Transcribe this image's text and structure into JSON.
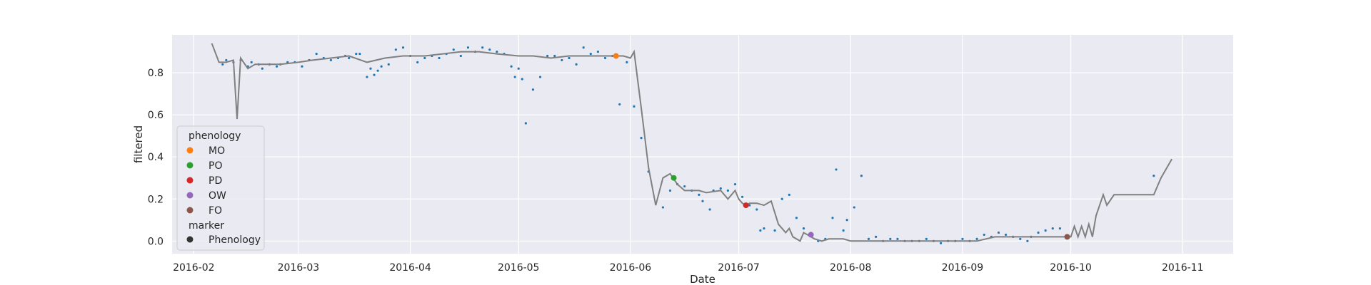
{
  "chart_data": {
    "type": "scatter",
    "title": "",
    "xlabel": "Date",
    "ylabel": "filtered",
    "x_range": [
      "2016-01-26",
      "2016-11-15"
    ],
    "ylim": [
      -0.06,
      0.98
    ],
    "x_ticks": [
      "2016-02",
      "2016-03",
      "2016-04",
      "2016-05",
      "2016-06",
      "2016-07",
      "2016-08",
      "2016-09",
      "2016-10",
      "2016-11"
    ],
    "y_ticks": [
      0.0,
      0.2,
      0.4,
      0.6,
      0.8
    ],
    "y_tick_labels": [
      "0.0",
      "0.2",
      "0.4",
      "0.6",
      "0.8"
    ],
    "grid": true,
    "legend_position": "center-left",
    "colors": {
      "plot_background": "#eaeaf2",
      "grid": "#ffffff",
      "line": "#808080",
      "points": "#1f77b4"
    },
    "observations": {
      "x": [
        "2016-02-09",
        "2016-02-10",
        "2016-02-12",
        "2016-02-14",
        "2016-02-16",
        "2016-02-17",
        "2016-02-19",
        "2016-02-20",
        "2016-02-22",
        "2016-02-24",
        "2016-02-25",
        "2016-02-27",
        "2016-02-29",
        "2016-03-02",
        "2016-03-04",
        "2016-03-06",
        "2016-03-08",
        "2016-03-10",
        "2016-03-12",
        "2016-03-14",
        "2016-03-15",
        "2016-03-17",
        "2016-03-18",
        "2016-03-20",
        "2016-03-21",
        "2016-03-22",
        "2016-03-23",
        "2016-03-24",
        "2016-03-26",
        "2016-03-28",
        "2016-03-30",
        "2016-04-01",
        "2016-04-03",
        "2016-04-05",
        "2016-04-07",
        "2016-04-09",
        "2016-04-11",
        "2016-04-13",
        "2016-04-15",
        "2016-04-17",
        "2016-04-19",
        "2016-04-21",
        "2016-04-23",
        "2016-04-25",
        "2016-04-27",
        "2016-04-29",
        "2016-04-30",
        "2016-05-01",
        "2016-05-02",
        "2016-05-03",
        "2016-05-05",
        "2016-05-07",
        "2016-05-09",
        "2016-05-11",
        "2016-05-13",
        "2016-05-15",
        "2016-05-17",
        "2016-05-19",
        "2016-05-21",
        "2016-05-23",
        "2016-05-25",
        "2016-05-27",
        "2016-05-29",
        "2016-05-31",
        "2016-06-02",
        "2016-06-04",
        "2016-06-06",
        "2016-06-10",
        "2016-06-12",
        "2016-06-14",
        "2016-06-16",
        "2016-06-18",
        "2016-06-20",
        "2016-06-21",
        "2016-06-23",
        "2016-06-24",
        "2016-06-26",
        "2016-06-28",
        "2016-06-30",
        "2016-07-02",
        "2016-07-04",
        "2016-07-06",
        "2016-07-07",
        "2016-07-08",
        "2016-07-11",
        "2016-07-13",
        "2016-07-15",
        "2016-07-17",
        "2016-07-19",
        "2016-07-21",
        "2016-07-23",
        "2016-07-25",
        "2016-07-27",
        "2016-07-28",
        "2016-07-30",
        "2016-07-31",
        "2016-08-02",
        "2016-08-04",
        "2016-08-06",
        "2016-08-08",
        "2016-08-10",
        "2016-08-12",
        "2016-08-14",
        "2016-08-16",
        "2016-08-18",
        "2016-08-20",
        "2016-08-22",
        "2016-08-24",
        "2016-08-26",
        "2016-08-28",
        "2016-08-30",
        "2016-09-01",
        "2016-09-03",
        "2016-09-05",
        "2016-09-07",
        "2016-09-09",
        "2016-09-11",
        "2016-09-13",
        "2016-09-15",
        "2016-09-17",
        "2016-09-19",
        "2016-09-20",
        "2016-09-22",
        "2016-09-24",
        "2016-09-26",
        "2016-09-28",
        "2016-10-24"
      ],
      "y": [
        0.84,
        0.86,
        0.85,
        0.86,
        0.83,
        0.85,
        0.84,
        0.82,
        0.84,
        0.83,
        0.84,
        0.85,
        0.85,
        0.83,
        0.86,
        0.89,
        0.87,
        0.86,
        0.87,
        0.88,
        0.87,
        0.89,
        0.89,
        0.78,
        0.82,
        0.79,
        0.81,
        0.83,
        0.84,
        0.91,
        0.92,
        0.88,
        0.85,
        0.87,
        0.88,
        0.87,
        0.89,
        0.91,
        0.88,
        0.92,
        0.9,
        0.92,
        0.91,
        0.9,
        0.89,
        0.83,
        0.78,
        0.82,
        0.77,
        0.56,
        0.72,
        0.78,
        0.88,
        0.88,
        0.86,
        0.87,
        0.84,
        0.92,
        0.89,
        0.9,
        0.87,
        0.88,
        0.65,
        0.85,
        0.64,
        0.49,
        0.33,
        0.16,
        0.24,
        0.27,
        0.26,
        0.24,
        0.22,
        0.19,
        0.15,
        0.24,
        0.25,
        0.24,
        0.27,
        0.21,
        0.17,
        0.15,
        0.05,
        0.06,
        0.05,
        0.2,
        0.22,
        0.11,
        0.06,
        0.03,
        0.0,
        0.01,
        0.11,
        0.34,
        0.05,
        0.1,
        0.16,
        0.31,
        0.01,
        0.02,
        0.0,
        0.01,
        0.01,
        0.0,
        0.0,
        0.0,
        0.01,
        0.0,
        -0.01,
        0.0,
        0.0,
        0.01,
        0.0,
        0.01,
        0.03,
        0.02,
        0.04,
        0.03,
        0.02,
        0.01,
        0.0,
        0.02,
        0.04,
        0.05,
        0.06,
        0.06,
        0.31
      ]
    },
    "filtered_line": {
      "x": [
        "2016-02-06",
        "2016-02-08",
        "2016-02-10",
        "2016-02-12",
        "2016-02-13",
        "2016-02-14",
        "2016-02-16",
        "2016-02-18",
        "2016-02-20",
        "2016-02-25",
        "2016-03-01",
        "2016-03-05",
        "2016-03-10",
        "2016-03-15",
        "2016-03-20",
        "2016-03-25",
        "2016-03-30",
        "2016-04-05",
        "2016-04-10",
        "2016-04-15",
        "2016-04-20",
        "2016-04-25",
        "2016-05-01",
        "2016-05-05",
        "2016-05-10",
        "2016-05-15",
        "2016-05-20",
        "2016-05-25",
        "2016-05-30",
        "2016-06-01",
        "2016-06-02",
        "2016-06-04",
        "2016-06-06",
        "2016-06-08",
        "2016-06-10",
        "2016-06-12",
        "2016-06-14",
        "2016-06-16",
        "2016-06-18",
        "2016-06-20",
        "2016-06-22",
        "2016-06-26",
        "2016-06-28",
        "2016-06-30",
        "2016-07-01",
        "2016-07-02",
        "2016-07-03",
        "2016-07-04",
        "2016-07-06",
        "2016-07-08",
        "2016-07-10",
        "2016-07-12",
        "2016-07-14",
        "2016-07-15",
        "2016-07-16",
        "2016-07-18",
        "2016-07-19",
        "2016-07-20",
        "2016-07-22",
        "2016-07-24",
        "2016-07-26",
        "2016-07-28",
        "2016-07-30",
        "2016-08-01",
        "2016-08-05",
        "2016-08-10",
        "2016-08-15",
        "2016-08-20",
        "2016-08-25",
        "2016-08-30",
        "2016-09-05",
        "2016-09-10",
        "2016-09-15",
        "2016-09-20",
        "2016-09-25",
        "2016-09-28",
        "2016-10-01",
        "2016-10-02",
        "2016-10-03",
        "2016-10-04",
        "2016-10-05",
        "2016-10-06",
        "2016-10-07",
        "2016-10-08",
        "2016-10-10",
        "2016-10-11",
        "2016-10-13",
        "2016-10-24",
        "2016-10-26",
        "2016-10-29"
      ],
      "y": [
        0.94,
        0.85,
        0.85,
        0.86,
        0.58,
        0.87,
        0.82,
        0.84,
        0.84,
        0.84,
        0.85,
        0.86,
        0.87,
        0.88,
        0.85,
        0.87,
        0.88,
        0.88,
        0.89,
        0.9,
        0.9,
        0.89,
        0.88,
        0.88,
        0.87,
        0.88,
        0.88,
        0.88,
        0.88,
        0.87,
        0.9,
        0.63,
        0.35,
        0.17,
        0.3,
        0.32,
        0.27,
        0.24,
        0.24,
        0.24,
        0.23,
        0.24,
        0.2,
        0.24,
        0.2,
        0.18,
        0.17,
        0.18,
        0.18,
        0.17,
        0.19,
        0.08,
        0.04,
        0.06,
        0.02,
        0.0,
        0.04,
        0.03,
        0.01,
        0.0,
        0.01,
        0.01,
        0.01,
        0.0,
        0.0,
        0.0,
        0.0,
        0.0,
        0.0,
        0.0,
        0.0,
        0.02,
        0.02,
        0.02,
        0.02,
        0.02,
        0.02,
        0.07,
        0.02,
        0.07,
        0.02,
        0.08,
        0.02,
        0.12,
        0.22,
        0.17,
        0.22,
        0.22,
        0.3,
        0.39
      ]
    },
    "phenology": [
      {
        "name": "MO",
        "x": "2016-05-28",
        "y": 0.88,
        "color": "#ff7f0e"
      },
      {
        "name": "PO",
        "x": "2016-06-13",
        "y": 0.3,
        "color": "#2ca02c"
      },
      {
        "name": "PD",
        "x": "2016-07-03",
        "y": 0.17,
        "color": "#d62728"
      },
      {
        "name": "OW",
        "x": "2016-07-21",
        "y": 0.03,
        "color": "#9467bd"
      },
      {
        "name": "FO",
        "x": "2016-09-30",
        "y": 0.02,
        "color": "#8c564b"
      }
    ],
    "legend": {
      "title1": "phenology",
      "entries": [
        "MO",
        "PO",
        "PD",
        "OW",
        "FO"
      ],
      "title2": "marker",
      "marker_entry": "Phenology"
    }
  }
}
